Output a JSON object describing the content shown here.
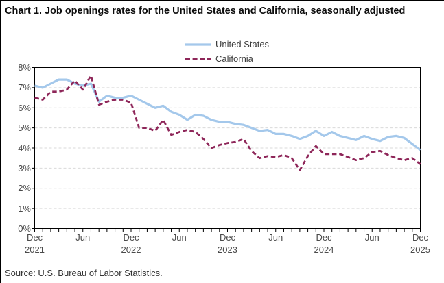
{
  "title": "Chart 1. Job openings rates for the United States and California, seasonally adjusted",
  "source": "Source: U.S. Bureau of Labor Statistics.",
  "colors": {
    "us_line": "#A4C8EB",
    "ca_line": "#8E2659",
    "gridline": "#D9D9D9",
    "axis": "#000000",
    "tick_label": "#4a4a4a"
  },
  "legend": [
    {
      "label": "United States",
      "color": "#A4C8EB",
      "style": "solid"
    },
    {
      "label": "California",
      "color": "#8E2659",
      "style": "dashed"
    }
  ],
  "chart_data": {
    "type": "line",
    "title": "Chart 1. Job openings rates for the United States and California, seasonally adjusted",
    "ylabel_format": "percent",
    "ylim": [
      0,
      8
    ],
    "y_tick_labels": [
      "0%",
      "1%",
      "2%",
      "3%",
      "4%",
      "5%",
      "6%",
      "7%",
      "8%"
    ],
    "grid": "horizontal-dashed",
    "legend_position": "top-center",
    "x": [
      "Dec 2021",
      "Jan 2022",
      "Feb 2022",
      "Mar 2022",
      "Apr 2022",
      "May 2022",
      "Jun 2022",
      "Jul 2022",
      "Aug 2022",
      "Sep 2022",
      "Oct 2022",
      "Nov 2022",
      "Dec 2022",
      "Jan 2023",
      "Feb 2023",
      "Mar 2023",
      "Apr 2023",
      "May 2023",
      "Jun 2023",
      "Jul 2023",
      "Aug 2023",
      "Sep 2023",
      "Oct 2023",
      "Nov 2023",
      "Dec 2023",
      "Jan 2024",
      "Feb 2024",
      "Mar 2024",
      "Apr 2024",
      "May 2024",
      "Jun 2024",
      "Jul 2024",
      "Aug 2024",
      "Sep 2024",
      "Oct 2024",
      "Nov 2024",
      "Dec 2024",
      "Jan 2025",
      "Feb 2025",
      "Mar 2025",
      "Apr 2025",
      "May 2025",
      "Jun 2025",
      "Jul 2025",
      "Aug 2025",
      "Sep 2025",
      "Oct 2025",
      "Nov 2025",
      "Dec 2025"
    ],
    "x_axis_ticks": [
      {
        "index": 0,
        "month": "Dec",
        "year": "2021"
      },
      {
        "index": 6,
        "month": "Jun",
        "year": ""
      },
      {
        "index": 12,
        "month": "Dec",
        "year": "2022"
      },
      {
        "index": 18,
        "month": "Jun",
        "year": ""
      },
      {
        "index": 24,
        "month": "Dec",
        "year": "2023"
      },
      {
        "index": 30,
        "month": "Jun",
        "year": ""
      },
      {
        "index": 36,
        "month": "Dec",
        "year": "2024"
      },
      {
        "index": 42,
        "month": "Jun",
        "year": ""
      },
      {
        "index": 48,
        "month": "Dec",
        "year": "2025"
      }
    ],
    "series": [
      {
        "name": "United States",
        "color": "#A4C8EB",
        "dash": "solid",
        "values": [
          7.1,
          7.0,
          7.2,
          7.4,
          7.4,
          7.2,
          7.1,
          7.2,
          6.3,
          6.6,
          6.5,
          6.5,
          6.6,
          6.4,
          6.2,
          6.0,
          6.1,
          5.8,
          5.65,
          5.4,
          5.65,
          5.6,
          5.4,
          5.3,
          5.3,
          5.2,
          5.15,
          5.0,
          4.85,
          4.9,
          4.7,
          4.7,
          4.6,
          4.45,
          4.6,
          4.85,
          4.6,
          4.8,
          4.6,
          4.5,
          4.4,
          4.6,
          4.45,
          4.35,
          4.55,
          4.6,
          4.5,
          4.2,
          3.9
        ]
      },
      {
        "name": "California",
        "color": "#8E2659",
        "dash": "dashed",
        "values": [
          6.5,
          6.4,
          6.8,
          6.8,
          6.9,
          7.35,
          6.9,
          7.6,
          6.15,
          6.3,
          6.4,
          6.4,
          6.25,
          5.0,
          5.0,
          4.85,
          5.4,
          4.65,
          4.8,
          4.9,
          4.8,
          4.45,
          4.0,
          4.15,
          4.25,
          4.3,
          4.45,
          3.85,
          3.5,
          3.6,
          3.55,
          3.65,
          3.5,
          2.9,
          3.6,
          4.1,
          3.7,
          3.7,
          3.7,
          3.55,
          3.4,
          3.5,
          3.8,
          3.85,
          3.65,
          3.5,
          3.4,
          3.5,
          3.2
        ]
      }
    ]
  }
}
